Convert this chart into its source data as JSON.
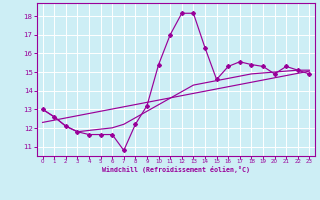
{
  "background_color": "#cdeef5",
  "grid_color": "#ffffff",
  "line_color": "#990099",
  "xlabel": "Windchill (Refroidissement éolien,°C)",
  "x_ticks": [
    0,
    1,
    2,
    3,
    4,
    5,
    6,
    7,
    8,
    9,
    10,
    11,
    12,
    13,
    14,
    15,
    16,
    17,
    18,
    19,
    20,
    21,
    22,
    23
  ],
  "y_ticks": [
    11,
    12,
    13,
    14,
    15,
    16,
    17,
    18
  ],
  "ylim": [
    10.5,
    18.7
  ],
  "xlim": [
    -0.5,
    23.5
  ],
  "series1_x": [
    0,
    1,
    2,
    3,
    4,
    5,
    6,
    7,
    8,
    9,
    10,
    11,
    12,
    13,
    14,
    15,
    16,
    17,
    18,
    19,
    20,
    21,
    22,
    23
  ],
  "series1_y": [
    13.0,
    12.6,
    12.1,
    11.8,
    11.65,
    11.65,
    11.65,
    10.8,
    12.2,
    13.2,
    15.4,
    17.0,
    18.15,
    18.15,
    16.3,
    14.6,
    15.3,
    15.55,
    15.4,
    15.3,
    14.9,
    15.3,
    15.1,
    14.9
  ],
  "series2_x": [
    0,
    1,
    2,
    3,
    4,
    5,
    6,
    7,
    8,
    9,
    10,
    11,
    12,
    13,
    14,
    15,
    16,
    17,
    18,
    19,
    20,
    21,
    22,
    23
  ],
  "series2_y": [
    13.0,
    12.6,
    12.1,
    11.8,
    11.87,
    11.94,
    12.01,
    12.2,
    12.55,
    12.9,
    13.25,
    13.6,
    13.95,
    14.3,
    14.42,
    14.54,
    14.66,
    14.78,
    14.9,
    14.95,
    15.0,
    15.05,
    15.1,
    15.1
  ],
  "series3_x": [
    0,
    23
  ],
  "series3_y": [
    12.3,
    15.05
  ]
}
